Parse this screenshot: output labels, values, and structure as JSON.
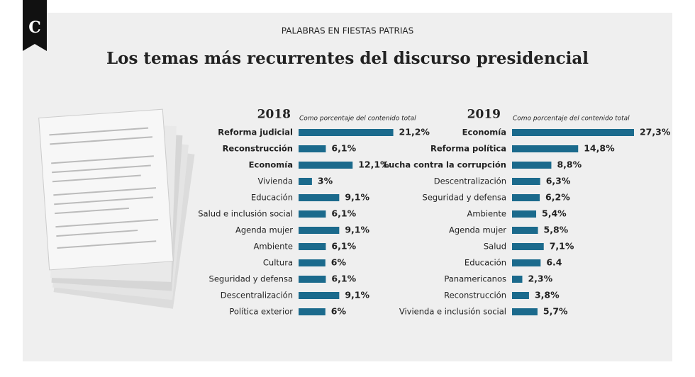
{
  "logo": "C",
  "kicker": "PALABRAS EN FIESTAS PATRIAS",
  "title": "Los temas más recurrentes del discurso presidencial",
  "chart_data": [
    {
      "type": "bar",
      "orientation": "horizontal",
      "title": "2018",
      "subtitle": "Como porcentaje del contenido total",
      "color": "#1b6a8c",
      "bold_top": 3,
      "categories": [
        "Reforma judicial",
        "Reconstrucción",
        "Economía",
        "Vivienda",
        "Educación",
        "Salud e inclusión social",
        "Agenda mujer",
        "Ambiente",
        "Cultura",
        "Seguridad y defensa",
        "Descentralización",
        "Política exterior"
      ],
      "values": [
        21.2,
        6.1,
        12.1,
        3,
        9.1,
        6.1,
        9.1,
        6.1,
        6,
        6.1,
        9.1,
        6
      ],
      "value_labels": [
        "21,2%",
        "6,1%",
        "12,1%",
        "3%",
        "9,1%",
        "6,1%",
        "9,1%",
        "6,1%",
        "6%",
        "6,1%",
        "9,1%",
        "6%"
      ]
    },
    {
      "type": "bar",
      "orientation": "horizontal",
      "title": "2019",
      "subtitle": "Como porcentaje del contenido total",
      "color": "#1b6a8c",
      "bold_top": 3,
      "categories": [
        "Economía",
        "Reforma política",
        "Lucha contra la corrupción",
        "Descentralización",
        "Seguridad y defensa",
        "Ambiente",
        "Agenda mujer",
        "Salud",
        "Educación",
        "Panamericanos",
        "Reconstrucción",
        "Vivienda e inclusión social"
      ],
      "values": [
        27.3,
        14.8,
        8.8,
        6.3,
        6.2,
        5.4,
        5.8,
        7.1,
        6.4,
        2.3,
        3.8,
        5.7
      ],
      "value_labels": [
        "27,3%",
        "14,8%",
        "8,8%",
        "6,3%",
        "6,2%",
        "5,4%",
        "5,8%",
        "7,1%",
        "6.4",
        "2,3%",
        "3,8%",
        "5,7%"
      ]
    }
  ]
}
